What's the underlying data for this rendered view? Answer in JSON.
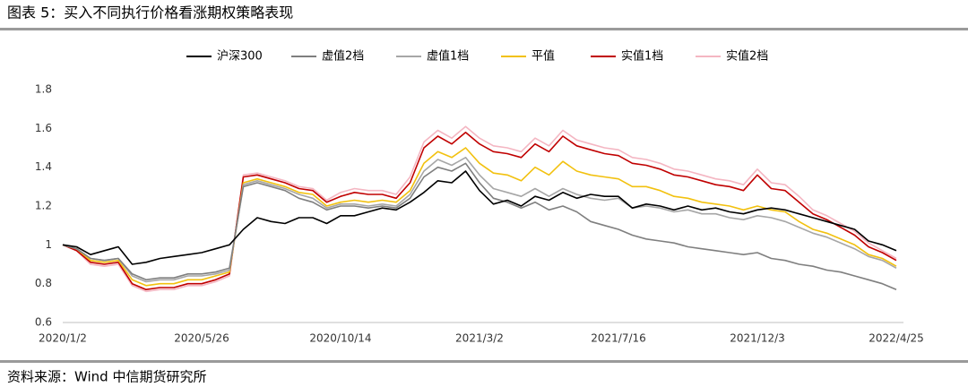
{
  "chart_data": {
    "type": "line",
    "title": "图表 5：买入不同执行价格看涨期权策略表现",
    "source": "资料来源：Wind 中信期货研究所",
    "categories": [
      "2020/1/2",
      null,
      null,
      null,
      null,
      null,
      null,
      null,
      null,
      null,
      "2020/5/26",
      null,
      null,
      null,
      null,
      null,
      null,
      null,
      null,
      null,
      "2020/10/14",
      null,
      null,
      null,
      null,
      null,
      null,
      null,
      null,
      null,
      "2021/3/2",
      null,
      null,
      null,
      null,
      null,
      null,
      null,
      null,
      null,
      "2021/7/16",
      null,
      null,
      null,
      null,
      null,
      null,
      null,
      null,
      null,
      "2021/12/3",
      null,
      null,
      null,
      null,
      null,
      null,
      null,
      null,
      null,
      "2022/4/25"
    ],
    "ylim": [
      0.6,
      1.8
    ],
    "yticks": [
      0.6,
      0.8,
      1,
      1.2,
      1.4,
      1.6,
      1.8
    ],
    "grid": false,
    "legend": "top",
    "series": [
      {
        "name": "沪深300",
        "color": "#000000",
        "values": [
          1.0,
          0.99,
          0.95,
          0.97,
          0.99,
          0.9,
          0.91,
          0.93,
          0.94,
          0.95,
          0.96,
          0.98,
          1.0,
          1.08,
          1.14,
          1.12,
          1.11,
          1.14,
          1.14,
          1.11,
          1.15,
          1.15,
          1.17,
          1.19,
          1.18,
          1.22,
          1.27,
          1.33,
          1.32,
          1.38,
          1.28,
          1.21,
          1.23,
          1.2,
          1.25,
          1.23,
          1.27,
          1.24,
          1.26,
          1.25,
          1.25,
          1.19,
          1.21,
          1.2,
          1.18,
          1.2,
          1.18,
          1.19,
          1.17,
          1.16,
          1.18,
          1.19,
          1.18,
          1.16,
          1.14,
          1.12,
          1.1,
          1.08,
          1.02,
          1.0,
          0.97
        ]
      },
      {
        "name": "虚值2档",
        "color": "#7f7f7f",
        "values": [
          1.0,
          0.98,
          0.93,
          0.92,
          0.93,
          0.85,
          0.82,
          0.83,
          0.83,
          0.85,
          0.85,
          0.86,
          0.88,
          1.3,
          1.32,
          1.3,
          1.28,
          1.24,
          1.22,
          1.18,
          1.2,
          1.2,
          1.19,
          1.2,
          1.19,
          1.24,
          1.35,
          1.4,
          1.38,
          1.42,
          1.32,
          1.24,
          1.22,
          1.19,
          1.22,
          1.18,
          1.2,
          1.17,
          1.12,
          1.1,
          1.08,
          1.05,
          1.03,
          1.02,
          1.01,
          0.99,
          0.98,
          0.97,
          0.96,
          0.95,
          0.96,
          0.93,
          0.92,
          0.9,
          0.89,
          0.87,
          0.86,
          0.84,
          0.82,
          0.8,
          0.77
        ]
      },
      {
        "name": "虚值1档",
        "color": "#a6a6a6",
        "values": [
          1.0,
          0.98,
          0.93,
          0.92,
          0.93,
          0.84,
          0.81,
          0.82,
          0.82,
          0.84,
          0.84,
          0.85,
          0.87,
          1.31,
          1.33,
          1.31,
          1.29,
          1.26,
          1.24,
          1.19,
          1.21,
          1.21,
          1.2,
          1.21,
          1.2,
          1.26,
          1.38,
          1.44,
          1.41,
          1.45,
          1.36,
          1.29,
          1.27,
          1.25,
          1.29,
          1.25,
          1.29,
          1.26,
          1.24,
          1.23,
          1.24,
          1.19,
          1.2,
          1.19,
          1.17,
          1.18,
          1.16,
          1.16,
          1.14,
          1.13,
          1.15,
          1.14,
          1.12,
          1.09,
          1.06,
          1.04,
          1.01,
          0.98,
          0.94,
          0.92,
          0.88
        ]
      },
      {
        "name": "平值",
        "color": "#f2c10f",
        "values": [
          1.0,
          0.98,
          0.92,
          0.91,
          0.92,
          0.82,
          0.79,
          0.8,
          0.8,
          0.82,
          0.82,
          0.84,
          0.86,
          1.32,
          1.34,
          1.32,
          1.3,
          1.27,
          1.26,
          1.2,
          1.22,
          1.23,
          1.22,
          1.23,
          1.22,
          1.28,
          1.42,
          1.48,
          1.45,
          1.5,
          1.42,
          1.37,
          1.36,
          1.33,
          1.4,
          1.36,
          1.43,
          1.38,
          1.36,
          1.35,
          1.34,
          1.3,
          1.3,
          1.28,
          1.25,
          1.24,
          1.22,
          1.21,
          1.2,
          1.18,
          1.2,
          1.18,
          1.17,
          1.12,
          1.08,
          1.06,
          1.03,
          1.0,
          0.95,
          0.93,
          0.89
        ]
      },
      {
        "name": "实值1档",
        "color": "#c00000",
        "values": [
          1.0,
          0.97,
          0.91,
          0.9,
          0.91,
          0.8,
          0.77,
          0.78,
          0.78,
          0.8,
          0.8,
          0.82,
          0.85,
          1.35,
          1.36,
          1.34,
          1.32,
          1.29,
          1.28,
          1.22,
          1.25,
          1.27,
          1.26,
          1.26,
          1.24,
          1.32,
          1.5,
          1.56,
          1.52,
          1.58,
          1.52,
          1.48,
          1.47,
          1.45,
          1.52,
          1.48,
          1.56,
          1.51,
          1.49,
          1.47,
          1.46,
          1.42,
          1.41,
          1.39,
          1.36,
          1.35,
          1.33,
          1.31,
          1.3,
          1.28,
          1.36,
          1.29,
          1.28,
          1.22,
          1.16,
          1.13,
          1.09,
          1.05,
          0.99,
          0.96,
          0.92
        ]
      },
      {
        "name": "实值2档",
        "color": "#f4b6c2",
        "values": [
          1.0,
          0.97,
          0.9,
          0.89,
          0.9,
          0.79,
          0.76,
          0.77,
          0.77,
          0.79,
          0.79,
          0.81,
          0.84,
          1.36,
          1.37,
          1.35,
          1.33,
          1.3,
          1.29,
          1.23,
          1.27,
          1.29,
          1.28,
          1.28,
          1.26,
          1.35,
          1.53,
          1.59,
          1.55,
          1.61,
          1.55,
          1.51,
          1.5,
          1.48,
          1.55,
          1.51,
          1.59,
          1.54,
          1.52,
          1.5,
          1.49,
          1.45,
          1.44,
          1.42,
          1.39,
          1.38,
          1.36,
          1.34,
          1.33,
          1.31,
          1.39,
          1.32,
          1.31,
          1.25,
          1.18,
          1.15,
          1.11,
          1.07,
          1.01,
          0.97,
          0.93
        ]
      }
    ]
  }
}
